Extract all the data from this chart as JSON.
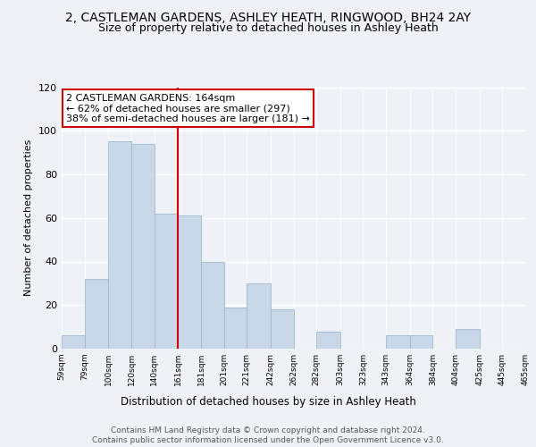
{
  "title": "2, CASTLEMAN GARDENS, ASHLEY HEATH, RINGWOOD, BH24 2AY",
  "subtitle": "Size of property relative to detached houses in Ashley Heath",
  "xlabel": "Distribution of detached houses by size in Ashley Heath",
  "ylabel": "Number of detached properties",
  "bar_edges": [
    59,
    79,
    100,
    120,
    140,
    161,
    181,
    201,
    221,
    242,
    262,
    282,
    303,
    323,
    343,
    364,
    384,
    404,
    425,
    445,
    465
  ],
  "bar_heights": [
    6,
    32,
    95,
    94,
    62,
    61,
    40,
    19,
    30,
    18,
    0,
    8,
    0,
    0,
    6,
    6,
    0,
    9,
    0,
    0
  ],
  "bar_color": "#c8d8e8",
  "bar_edge_color": "#a0b8d0",
  "vline_x": 161,
  "vline_color": "#cc0000",
  "annotation_text": "2 CASTLEMAN GARDENS: 164sqm\n← 62% of detached houses are smaller (297)\n38% of semi-detached houses are larger (181) →",
  "annotation_box_color": "#cc0000",
  "annotation_text_color": "#000000",
  "ylim": [
    0,
    120
  ],
  "yticks": [
    0,
    20,
    40,
    60,
    80,
    100,
    120
  ],
  "tick_labels": [
    "59sqm",
    "79sqm",
    "100sqm",
    "120sqm",
    "140sqm",
    "161sqm",
    "181sqm",
    "201sqm",
    "221sqm",
    "242sqm",
    "262sqm",
    "282sqm",
    "303sqm",
    "323sqm",
    "343sqm",
    "364sqm",
    "384sqm",
    "404sqm",
    "425sqm",
    "445sqm",
    "465sqm"
  ],
  "background_color": "#eef2f7",
  "grid_color": "#ffffff",
  "footer_text": "Contains HM Land Registry data © Crown copyright and database right 2024.\nContains public sector information licensed under the Open Government Licence v3.0.",
  "title_fontsize": 10,
  "subtitle_fontsize": 9,
  "xlabel_fontsize": 8.5,
  "ylabel_fontsize": 8,
  "annotation_fontsize": 8,
  "footer_fontsize": 6.5,
  "tick_fontsize": 6.5
}
